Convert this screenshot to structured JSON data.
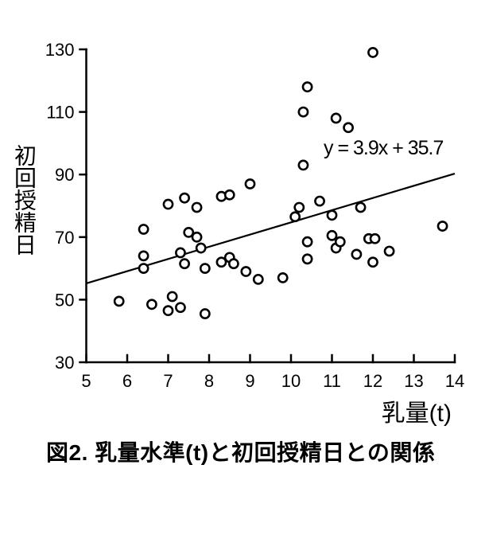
{
  "figure": {
    "caption": "図2. 乳量水準(t)と初回授精日との関係"
  },
  "colors": {
    "ink": "#000000",
    "background": "#ffffff"
  },
  "chart_data": {
    "type": "scatter",
    "title": "",
    "xlabel": "乳量(t)",
    "ylabel": "初回授精日",
    "xlim": [
      5,
      14
    ],
    "ylim": [
      30,
      130
    ],
    "xticks": [
      5,
      6,
      7,
      8,
      9,
      10,
      11,
      12,
      13,
      14
    ],
    "yticks": [
      30,
      50,
      70,
      90,
      110,
      130
    ],
    "grid": false,
    "legend": "none",
    "marker": "open-circle",
    "points": [
      [
        5.8,
        49.5
      ],
      [
        6.4,
        72.5
      ],
      [
        6.4,
        64
      ],
      [
        6.4,
        60
      ],
      [
        6.6,
        48.5
      ],
      [
        7.0,
        80.5
      ],
      [
        7.0,
        46.5
      ],
      [
        7.1,
        51
      ],
      [
        7.3,
        65
      ],
      [
        7.3,
        47.5
      ],
      [
        7.4,
        82.5
      ],
      [
        7.4,
        61.5
      ],
      [
        7.5,
        71.5
      ],
      [
        7.7,
        79.5
      ],
      [
        7.7,
        70
      ],
      [
        7.8,
        66.5
      ],
      [
        7.9,
        60
      ],
      [
        7.9,
        45.5
      ],
      [
        8.3,
        83
      ],
      [
        8.3,
        62
      ],
      [
        8.5,
        83.5
      ],
      [
        8.5,
        63.5
      ],
      [
        8.6,
        61.5
      ],
      [
        8.9,
        59
      ],
      [
        9.0,
        87
      ],
      [
        9.2,
        56.5
      ],
      [
        9.8,
        57
      ],
      [
        10.1,
        76.5
      ],
      [
        10.2,
        79.5
      ],
      [
        10.3,
        93
      ],
      [
        10.3,
        110
      ],
      [
        10.4,
        118
      ],
      [
        10.4,
        68.5
      ],
      [
        10.4,
        63
      ],
      [
        10.7,
        81.5
      ],
      [
        11.0,
        77
      ],
      [
        11.0,
        70.5
      ],
      [
        11.1,
        108
      ],
      [
        11.1,
        66.5
      ],
      [
        11.2,
        68.5
      ],
      [
        11.4,
        105
      ],
      [
        11.6,
        64.5
      ],
      [
        11.7,
        79.5
      ],
      [
        11.9,
        69.5
      ],
      [
        12.05,
        69.5
      ],
      [
        12.0,
        129
      ],
      [
        12.0,
        62
      ],
      [
        12.4,
        65.5
      ],
      [
        13.7,
        73.5
      ]
    ],
    "trendline": {
      "slope": 3.9,
      "intercept": 35.7,
      "equation": "y = 3.9x + 35.7",
      "x_start": 5,
      "x_end": 14
    }
  }
}
